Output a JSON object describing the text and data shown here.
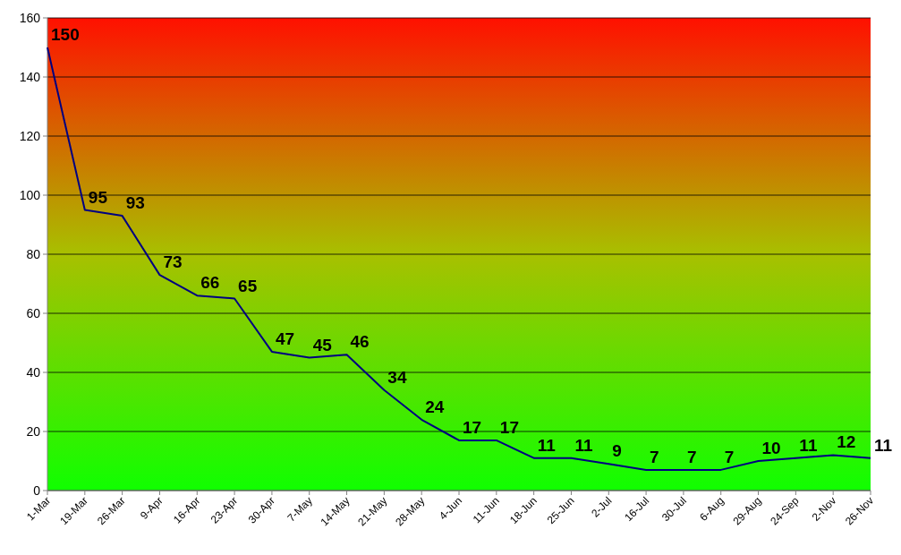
{
  "chart_data": {
    "type": "line",
    "categories": [
      "1-Mar",
      "19-Mar",
      "26-Mar",
      "9-Apr",
      "16-Apr",
      "23-Apr",
      "30-Apr",
      "7-May",
      "14-May",
      "21-May",
      "28-May",
      "4-Jun",
      "11-Jun",
      "18-Jun",
      "25-Jun",
      "2-Jul",
      "16-Jul",
      "30-Jul",
      "6-Aug",
      "29-Aug",
      "24-Sep",
      "2-Nov",
      "26-Nov"
    ],
    "series": [
      {
        "color": "#000080",
        "values": [
          150,
          95,
          93,
          73,
          66,
          65,
          47,
          45,
          46,
          34,
          24,
          17,
          17,
          11,
          11,
          9,
          7,
          7,
          7,
          10,
          11,
          12,
          11
        ]
      }
    ],
    "ylim": [
      0,
      160
    ],
    "yticks": [
      0,
      20,
      40,
      60,
      80,
      100,
      120,
      140,
      160
    ],
    "grid": "y",
    "data_labels": true,
    "marker": "none",
    "line_style": "solid"
  }
}
